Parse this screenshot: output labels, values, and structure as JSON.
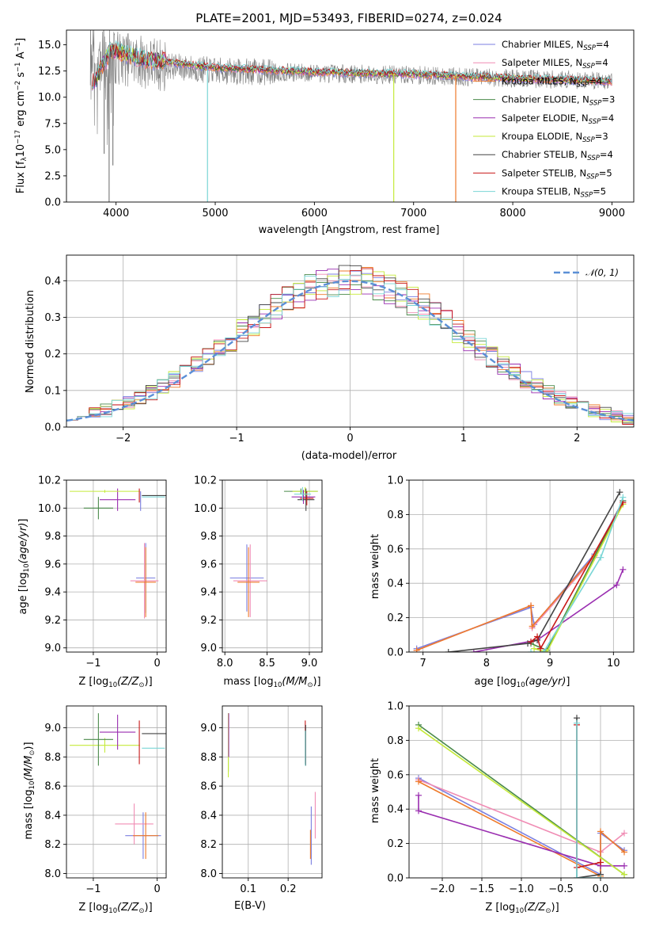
{
  "figure": {
    "title": "PLATE=2001, MJD=53493, FIBERID=0274, z=0.024"
  },
  "models": [
    {
      "name": "Chabrier MILES",
      "nssp": "4",
      "color": "#7b7fe0"
    },
    {
      "name": "Salpeter MILES",
      "nssp": "4",
      "color": "#f08cb4"
    },
    {
      "name": "Kroupa MILES",
      "nssp": "4",
      "color": "#ee7a2a"
    },
    {
      "name": "Chabrier ELODIE",
      "nssp": "3",
      "color": "#4a8a4a"
    },
    {
      "name": "Salpeter ELODIE",
      "nssp": "4",
      "color": "#9a2eb0"
    },
    {
      "name": "Kroupa ELODIE",
      "nssp": "3",
      "color": "#c5ea3a"
    },
    {
      "name": "Chabrier STELIB",
      "nssp": "4",
      "color": "#444444"
    },
    {
      "name": "Salpeter STELIB",
      "nssp": "5",
      "color": "#c81818"
    },
    {
      "name": "Kroupa STELIB",
      "nssp": "5",
      "color": "#7ad6d6"
    }
  ],
  "legend": {
    "nssp_prefix": "N",
    "nssp_sub": "SSP",
    "nssp_suffix": "="
  },
  "chart_data": [
    {
      "id": "spectrum",
      "type": "line",
      "xlabel": "wavelength [Angstrom, rest frame]",
      "ylabel_main": "Flux [f",
      "ylabel_sub": "λ",
      "ylabel_rest": "10",
      "ylabel_exp1": "−17",
      "ylabel_mid": " erg cm",
      "ylabel_exp2": "−2",
      "ylabel_mid2": " s",
      "ylabel_exp3": "−1",
      "ylabel_mid3": " A",
      "ylabel_exp4": "−1",
      "ylabel_end": "]",
      "xlim": [
        3500,
        9220
      ],
      "ylim": [
        0,
        16.4
      ],
      "xticks": [
        4000,
        5000,
        6000,
        7000,
        8000,
        9000
      ],
      "yticks": [
        0.0,
        2.5,
        5.0,
        7.5,
        10.0,
        12.5,
        15.0
      ],
      "ytick_labels": [
        "0.0",
        "2.5",
        "5.0",
        "7.5",
        "10.0",
        "12.5",
        "15.0"
      ],
      "legend_position": "top-right",
      "grid": false,
      "observed_wavelength_range": [
        3740,
        9000
      ],
      "observed_level": [
        [
          3750,
          12.5
        ],
        [
          4000,
          13.8
        ],
        [
          4500,
          13.0
        ],
        [
          5000,
          12.5
        ],
        [
          6000,
          12.3
        ],
        [
          7000,
          12.1
        ],
        [
          8000,
          11.8
        ],
        [
          9000,
          11.6
        ]
      ],
      "model_level": [
        [
          3750,
          11.0
        ],
        [
          3950,
          14.5
        ],
        [
          4300,
          13.6
        ],
        [
          5000,
          12.8
        ],
        [
          6000,
          12.4
        ],
        [
          7000,
          12.2
        ],
        [
          8000,
          11.8
        ],
        [
          9000,
          11.5
        ]
      ],
      "dips": [
        {
          "x": 3880,
          "y": 4.6
        },
        {
          "x": 3930,
          "y": 0.0
        },
        {
          "x": 3968,
          "y": 3.5
        },
        {
          "x": 4922,
          "y": 0.0
        },
        {
          "x": 6800,
          "y": 0.0
        },
        {
          "x": 7425,
          "y": 0.0
        }
      ]
    },
    {
      "id": "residuals",
      "type": "line",
      "xlabel": "(data-model)/error",
      "ylabel": "Normed distribution",
      "xlim": [
        -2.5,
        2.5
      ],
      "ylim": [
        0,
        0.47
      ],
      "xticks": [
        -2,
        -1,
        0,
        1,
        2
      ],
      "xtick_labels": [
        "−2",
        "−1",
        "0",
        "1",
        "2"
      ],
      "yticks": [
        0.0,
        0.1,
        0.2,
        0.3,
        0.4
      ],
      "ytick_labels": [
        "0.0",
        "0.1",
        "0.2",
        "0.3",
        "0.4"
      ],
      "grid": true,
      "legend_position": "top-right",
      "reference_curve": {
        "name": "𝒩(0, 1)",
        "mean": 0,
        "sigma": 1,
        "color": "#5b8fd6"
      },
      "bin_width": 0.1
    },
    {
      "id": "age_vs_Z",
      "type": "scatter",
      "xlabel": "Z [log10(Z/Z⊙)]",
      "ylabel": "age  [log10(age/yr)]",
      "xlim": [
        -1.42,
        0.14
      ],
      "ylim": [
        8.97,
        10.2
      ],
      "xticks": [
        -1,
        0
      ],
      "xtick_labels": [
        "−1",
        "0"
      ],
      "yticks": [
        9.0,
        9.2,
        9.4,
        9.6,
        9.8,
        10.0,
        10.2
      ],
      "ytick_labels": [
        "9.0",
        "9.2",
        "9.4",
        "9.6",
        "9.8",
        "10.0",
        "10.2"
      ],
      "grid": true,
      "points": [
        {
          "x": -0.62,
          "y": 10.06,
          "xerr": 0.28,
          "yerr": 0.08,
          "model": 4
        },
        {
          "x": -0.82,
          "y": 10.12,
          "xerr": 0.55,
          "yerr": 0.01,
          "model": 5
        },
        {
          "x": -0.92,
          "y": 10.0,
          "xerr": 0.23,
          "yerr": 0.08,
          "model": 3
        },
        {
          "x": -0.28,
          "y": 10.09,
          "xerr": 0.0,
          "yerr": 0.05,
          "model": 7
        },
        {
          "x": -0.05,
          "y": 10.09,
          "xerr": 0.19,
          "yerr": 0.0,
          "model": 6
        },
        {
          "x": -0.06,
          "y": 10.08,
          "xerr": 0.18,
          "yerr": 0.0,
          "model": 8
        },
        {
          "x": -0.26,
          "y": 10.05,
          "xerr": 0.0,
          "yerr": 0.07,
          "model": 0
        },
        {
          "x": -0.18,
          "y": 9.5,
          "xerr": 0.15,
          "yerr": 0.25,
          "model": 0
        },
        {
          "x": -0.2,
          "y": 9.48,
          "xerr": 0.22,
          "yerr": 0.27,
          "model": 1
        },
        {
          "x": -0.18,
          "y": 9.47,
          "xerr": 0.16,
          "yerr": 0.25,
          "model": 2
        }
      ]
    },
    {
      "id": "age_vs_mass",
      "type": "scatter",
      "xlabel": "mass [log10(M/M⊙)]",
      "xlim": [
        7.97,
        9.15
      ],
      "ylim": [
        8.97,
        10.2
      ],
      "xticks": [
        8.0,
        8.5,
        9.0
      ],
      "xtick_labels": [
        "8.0",
        "8.5",
        "9.0"
      ],
      "yticks": [
        9.0,
        9.2,
        9.4,
        9.6,
        9.8,
        10.0,
        10.2
      ],
      "ytick_labels": [
        "9.0",
        "9.2",
        "9.4",
        "9.6",
        "9.8",
        "10.0",
        "10.2"
      ],
      "grid": true,
      "points": [
        {
          "x": 8.9,
          "y": 10.12,
          "xerr": 0.2,
          "yerr": 0.02,
          "model": 3
        },
        {
          "x": 8.95,
          "y": 10.12,
          "xerr": 0.15,
          "yerr": 0.03,
          "model": 5
        },
        {
          "x": 8.93,
          "y": 10.08,
          "xerr": 0.14,
          "yerr": 0.05,
          "model": 4
        },
        {
          "x": 8.96,
          "y": 10.06,
          "xerr": 0.1,
          "yerr": 0.08,
          "model": 6
        },
        {
          "x": 8.97,
          "y": 10.07,
          "xerr": 0.08,
          "yerr": 0.05,
          "model": 7
        },
        {
          "x": 8.92,
          "y": 10.1,
          "xerr": 0.1,
          "yerr": 0.05,
          "model": 8
        },
        {
          "x": 8.26,
          "y": 9.5,
          "xerr": 0.2,
          "yerr": 0.24,
          "model": 0
        },
        {
          "x": 8.3,
          "y": 9.48,
          "xerr": 0.2,
          "yerr": 0.26,
          "model": 1
        },
        {
          "x": 8.28,
          "y": 9.47,
          "xerr": 0.13,
          "yerr": 0.25,
          "model": 2
        }
      ]
    },
    {
      "id": "mass_weight_vs_age",
      "type": "line",
      "xlabel": "age  [log10(age/yr)]",
      "ylabel": "mass weight",
      "xlim": [
        6.78,
        10.32
      ],
      "ylim": [
        0,
        1.0
      ],
      "xticks": [
        7,
        8,
        9,
        10
      ],
      "xtick_labels": [
        "7",
        "8",
        "9",
        "10"
      ],
      "yticks": [
        0.0,
        0.2,
        0.4,
        0.6,
        0.8,
        1.0
      ],
      "ytick_labels": [
        "0.0",
        "0.2",
        "0.4",
        "0.6",
        "0.8",
        "1.0"
      ],
      "grid": true,
      "series": [
        {
          "model": 0,
          "points": [
            [
              6.9,
              0.02
            ],
            [
              8.7,
              0.26
            ],
            [
              8.75,
              0.16
            ],
            [
              9.7,
              0.57
            ],
            [
              10.15,
              0.88
            ]
          ]
        },
        {
          "model": 1,
          "points": [
            [
              6.9,
              0.01
            ],
            [
              8.7,
              0.27
            ],
            [
              8.72,
              0.14
            ],
            [
              9.7,
              0.55
            ],
            [
              10.15,
              0.88
            ]
          ]
        },
        {
          "model": 2,
          "points": [
            [
              6.9,
              0.01
            ],
            [
              8.7,
              0.27
            ],
            [
              8.72,
              0.15
            ],
            [
              9.7,
              0.56
            ],
            [
              10.15,
              0.86
            ]
          ]
        },
        {
          "model": 3,
          "points": [
            [
              8.7,
              0.05
            ],
            [
              8.95,
              0.01
            ],
            [
              10.15,
              0.88
            ]
          ]
        },
        {
          "model": 4,
          "points": [
            [
              7.8,
              0.0
            ],
            [
              8.8,
              0.07
            ],
            [
              10.05,
              0.39
            ],
            [
              10.15,
              0.48
            ]
          ]
        },
        {
          "model": 5,
          "points": [
            [
              8.75,
              0.02
            ],
            [
              8.95,
              0.0
            ],
            [
              10.15,
              0.86
            ]
          ]
        },
        {
          "model": 6,
          "points": [
            [
              7.4,
              0.0
            ],
            [
              8.65,
              0.05
            ],
            [
              8.8,
              0.07
            ],
            [
              10.1,
              0.93
            ]
          ]
        },
        {
          "model": 7,
          "points": [
            [
              8.7,
              0.06
            ],
            [
              8.8,
              0.09
            ],
            [
              8.85,
              0.02
            ],
            [
              10.15,
              0.87
            ]
          ]
        },
        {
          "model": 8,
          "points": [
            [
              8.7,
              0.0
            ],
            [
              8.9,
              0.0
            ],
            [
              9.8,
              0.55
            ],
            [
              10.15,
              0.9
            ]
          ]
        }
      ]
    },
    {
      "id": "mass_vs_Z",
      "type": "scatter",
      "xlabel": "Z [log10(Z/Z⊙)]",
      "ylabel": "mass [log10(M/M⊙)]",
      "xlim": [
        -1.42,
        0.14
      ],
      "ylim": [
        7.97,
        9.15
      ],
      "xticks": [
        -1,
        0
      ],
      "xtick_labels": [
        "−1",
        "0"
      ],
      "yticks": [
        8.0,
        8.2,
        8.4,
        8.6,
        8.8,
        9.0
      ],
      "ytick_labels": [
        "8.0",
        "8.2",
        "8.4",
        "8.6",
        "8.8",
        "9.0"
      ],
      "grid": true,
      "points": [
        {
          "x": -0.82,
          "y": 8.88,
          "xerr": 0.55,
          "yerr": 0.05,
          "model": 5
        },
        {
          "x": -0.92,
          "y": 8.92,
          "xerr": 0.23,
          "yerr": 0.18,
          "model": 3
        },
        {
          "x": -0.62,
          "y": 8.97,
          "xerr": 0.28,
          "yerr": 0.12,
          "model": 4
        },
        {
          "x": -0.28,
          "y": 8.9,
          "xerr": 0.0,
          "yerr": 0.15,
          "model": 7
        },
        {
          "x": -0.05,
          "y": 8.96,
          "xerr": 0.19,
          "yerr": 0.0,
          "model": 6
        },
        {
          "x": -0.06,
          "y": 8.86,
          "xerr": 0.18,
          "yerr": 0.0,
          "model": 8
        },
        {
          "x": -0.22,
          "y": 8.26,
          "xerr": 0.28,
          "yerr": 0.16,
          "model": 0
        },
        {
          "x": -0.36,
          "y": 8.34,
          "xerr": 0.3,
          "yerr": 0.14,
          "model": 1
        },
        {
          "x": -0.18,
          "y": 8.26,
          "xerr": 0.2,
          "yerr": 0.16,
          "model": 2
        }
      ]
    },
    {
      "id": "mass_vs_ebv",
      "type": "scatter",
      "xlabel": "E(B-V)",
      "xlim": [
        0.035,
        0.285
      ],
      "ylim": [
        7.97,
        9.15
      ],
      "xticks": [
        0.1,
        0.2
      ],
      "xtick_labels": [
        "0.1",
        "0.2"
      ],
      "yticks": [
        8.0,
        8.2,
        8.4,
        8.6,
        8.8,
        9.0
      ],
      "ytick_labels": [
        "8.0",
        "8.2",
        "8.4",
        "8.6",
        "8.8",
        "9.0"
      ],
      "grid": true,
      "points": [
        {
          "x": 0.05,
          "y": 8.9,
          "xerr": 0.0,
          "yerr": 0.2,
          "model": 3
        },
        {
          "x": 0.05,
          "y": 8.88,
          "xerr": 0.0,
          "yerr": 0.22,
          "model": 5
        },
        {
          "x": 0.051,
          "y": 8.95,
          "xerr": 0.0,
          "yerr": 0.15,
          "model": 4
        },
        {
          "x": 0.243,
          "y": 8.9,
          "xerr": 0.0,
          "yerr": 0.15,
          "model": 7
        },
        {
          "x": 0.244,
          "y": 8.88,
          "xerr": 0.0,
          "yerr": 0.14,
          "model": 6
        },
        {
          "x": 0.243,
          "y": 8.86,
          "xerr": 0.0,
          "yerr": 0.12,
          "model": 8
        },
        {
          "x": 0.258,
          "y": 8.26,
          "xerr": 0.0,
          "yerr": 0.2,
          "model": 0
        },
        {
          "x": 0.268,
          "y": 8.4,
          "xerr": 0.0,
          "yerr": 0.16,
          "model": 1
        },
        {
          "x": 0.256,
          "y": 8.2,
          "xerr": 0.0,
          "yerr": 0.1,
          "model": 2
        }
      ]
    },
    {
      "id": "mass_weight_vs_Z",
      "type": "line",
      "xlabel": "Z [log10(Z/Z⊙)]",
      "ylabel": "mass weight",
      "xlim": [
        -2.42,
        0.42
      ],
      "ylim": [
        0,
        1.0
      ],
      "xticks": [
        -2.0,
        -1.5,
        -1.0,
        -0.5,
        0.0
      ],
      "xtick_labels": [
        "−2.0",
        "−1.5",
        "−1.0",
        "−0.5",
        "0.0"
      ],
      "yticks": [
        0.0,
        0.2,
        0.4,
        0.6,
        0.8,
        1.0
      ],
      "ytick_labels": [
        "0.0",
        "0.2",
        "0.4",
        "0.6",
        "0.8",
        "1.0"
      ],
      "grid": true,
      "series": [
        {
          "model": 0,
          "points": [
            [
              -2.3,
              0.58
            ],
            [
              0.0,
              0.02
            ],
            [
              0.0,
              0.26
            ],
            [
              0.3,
              0.16
            ]
          ]
        },
        {
          "model": 1,
          "points": [
            [
              -2.3,
              0.57
            ],
            [
              0.0,
              0.15
            ],
            [
              0.3,
              0.26
            ]
          ]
        },
        {
          "model": 2,
          "points": [
            [
              -2.3,
              0.56
            ],
            [
              0.0,
              0.01
            ],
            [
              0.0,
              0.27
            ],
            [
              0.3,
              0.15
            ]
          ]
        },
        {
          "model": 3,
          "points": [
            [
              -2.3,
              0.89
            ],
            [
              0.3,
              0.02
            ]
          ]
        },
        {
          "model": 4,
          "points": [
            [
              -2.3,
              0.48
            ],
            [
              -2.3,
              0.39
            ],
            [
              0.0,
              0.07
            ],
            [
              0.3,
              0.07
            ]
          ]
        },
        {
          "model": 5,
          "points": [
            [
              -2.3,
              0.87
            ],
            [
              0.3,
              0.02
            ]
          ]
        },
        {
          "model": 6,
          "points": [
            [
              -0.3,
              0.93
            ],
            [
              -0.3,
              0.0
            ],
            [
              0.0,
              0.02
            ]
          ]
        },
        {
          "model": 7,
          "points": [
            [
              -0.3,
              0.89
            ],
            [
              -0.3,
              0.06
            ],
            [
              0.0,
              0.09
            ]
          ]
        },
        {
          "model": 8,
          "points": [
            [
              -0.3,
              0.9
            ],
            [
              -0.3,
              0.0
            ],
            [
              0.0,
              0.0
            ]
          ]
        }
      ]
    }
  ]
}
